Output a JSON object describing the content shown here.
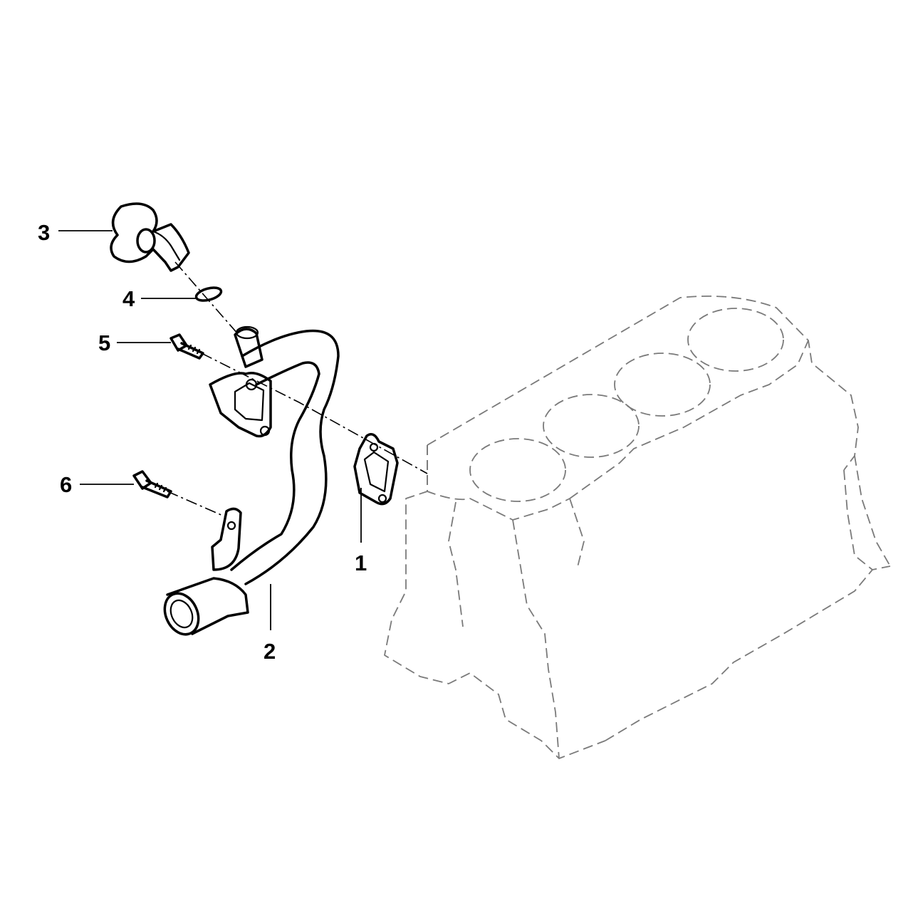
{
  "callouts": {
    "c1": "1",
    "c2": "2",
    "c3": "3",
    "c4": "4",
    "c5": "5",
    "c6": "6"
  },
  "colors": {
    "line": "#000000",
    "ghost_line": "#7a7a7a",
    "background": "#ffffff"
  }
}
